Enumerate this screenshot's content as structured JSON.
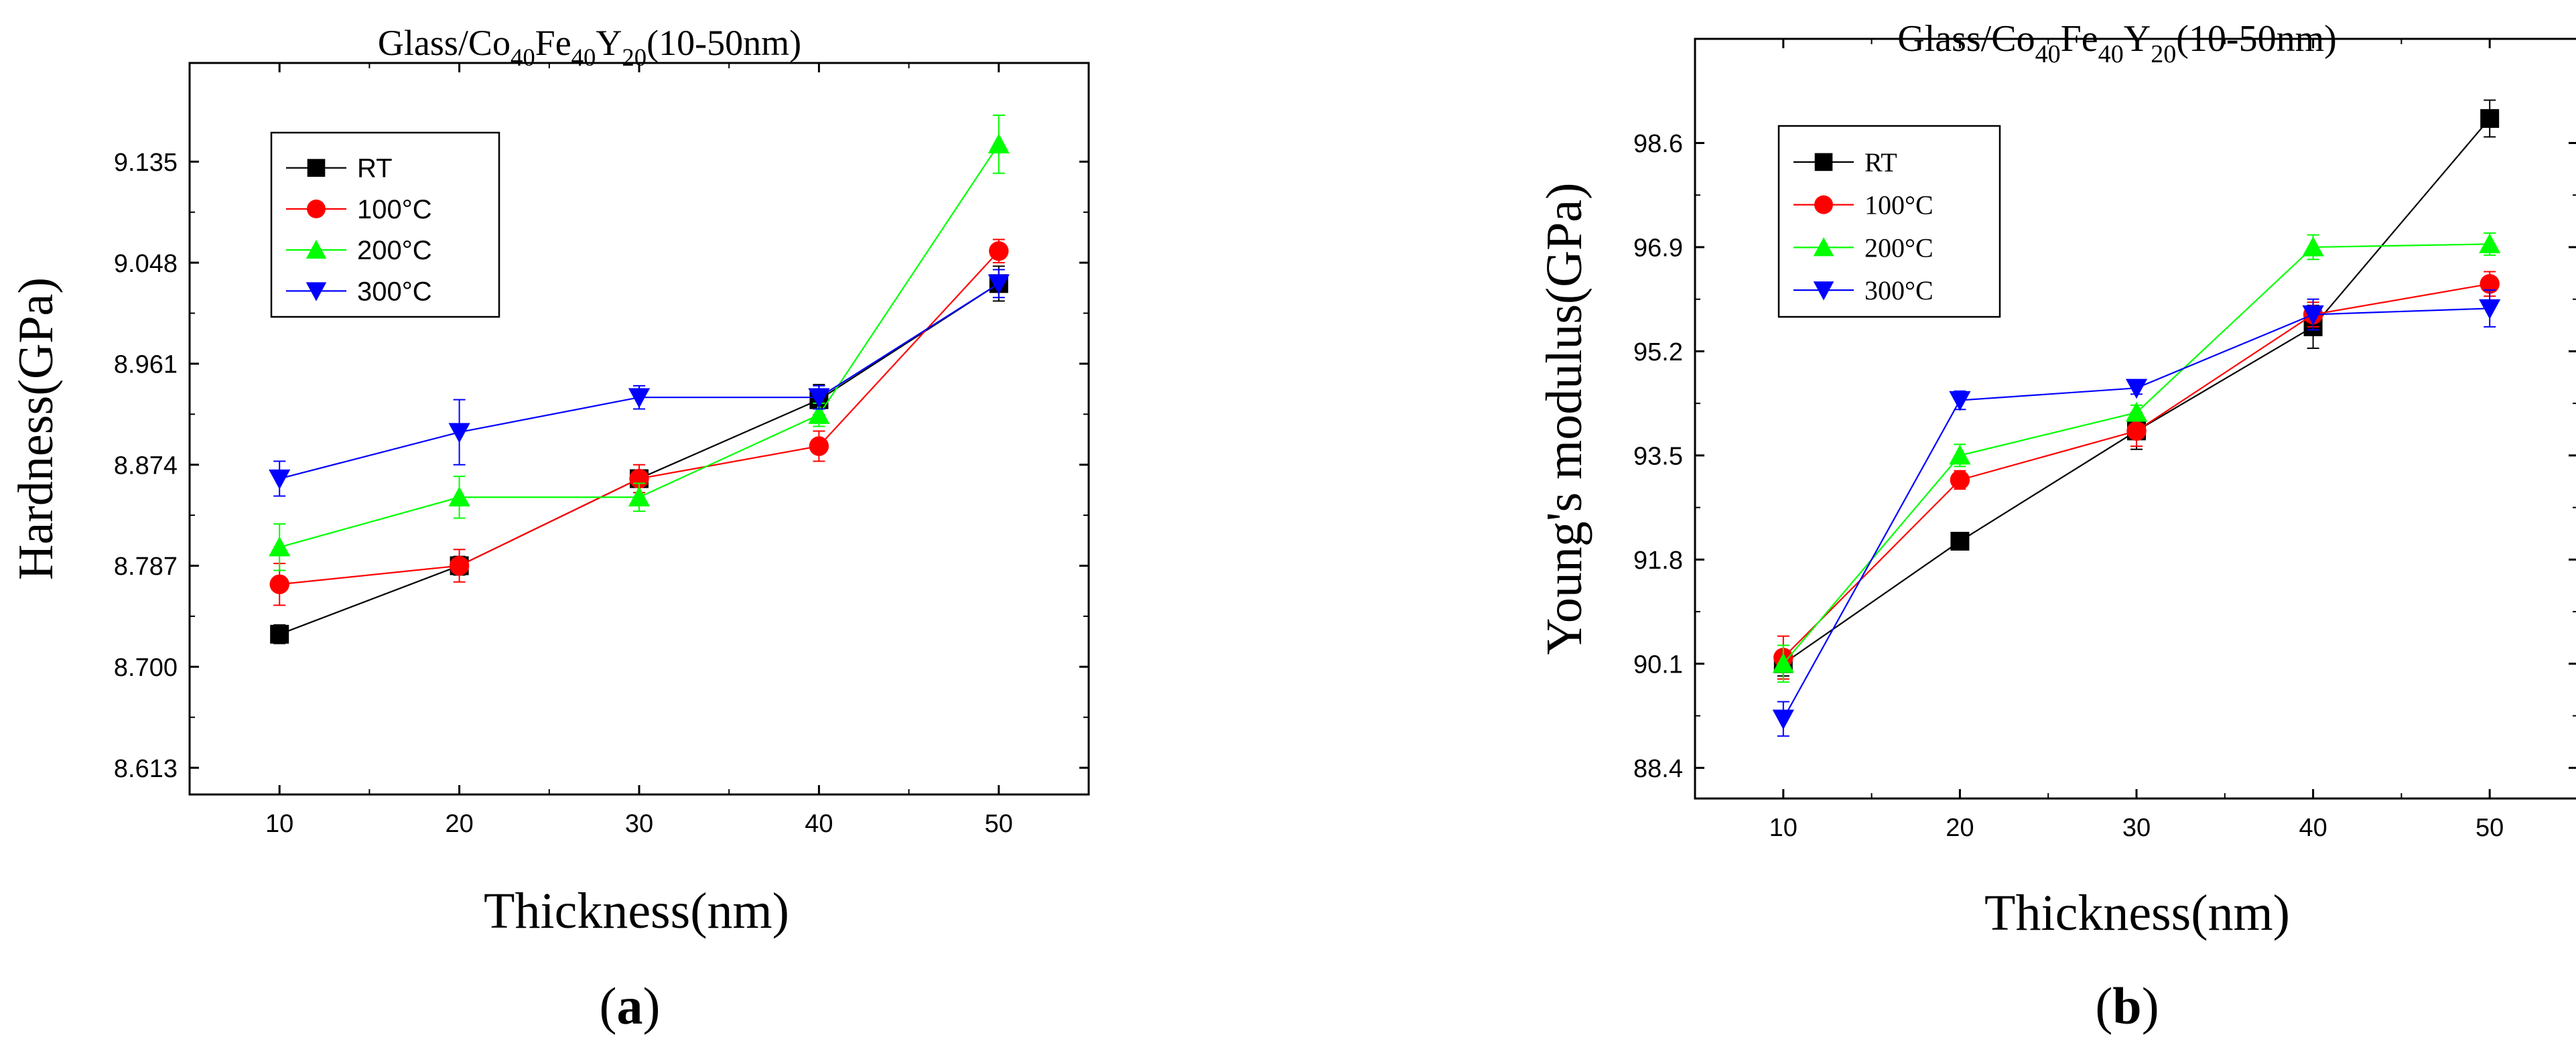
{
  "chart_data": [
    {
      "type": "line",
      "panel_label": "a",
      "title": {
        "base": "Glass/Co",
        "s1": "40",
        "mid": "Fe",
        "s2": "40",
        "mid2": "Y",
        "s3": "20",
        "tail": "(10-50nm)"
      },
      "xlabel": "Thickness(nm)",
      "ylabel": "Hardness(GPa)",
      "x": [
        10,
        20,
        30,
        40,
        50
      ],
      "xticks": [
        "10",
        "20",
        "30",
        "40",
        "50"
      ],
      "yticks": [
        "8.613",
        "8.700",
        "8.787",
        "8.874",
        "8.961",
        "9.048",
        "9.135"
      ],
      "xlim": [
        5,
        55
      ],
      "ylim": [
        8.59,
        9.22
      ],
      "legend_position": "top-left",
      "series": [
        {
          "name": "RT",
          "marker": "square",
          "color": "#000000",
          "values": [
            8.728,
            8.787,
            8.862,
            8.93,
            9.03
          ],
          "errors": [
            0.008,
            0.008,
            0.006,
            0.013,
            0.015
          ]
        },
        {
          "name": "100°C",
          "marker": "circle",
          "color": "#ff0000",
          "values": [
            8.771,
            8.787,
            8.862,
            8.89,
            9.058
          ],
          "errors": [
            0.018,
            0.014,
            0.012,
            0.013,
            0.01
          ]
        },
        {
          "name": "200°C",
          "marker": "triangle-up",
          "color": "#00ff00",
          "values": [
            8.803,
            8.846,
            8.846,
            8.917,
            9.15
          ],
          "errors": [
            0.02,
            0.018,
            0.012,
            0.01,
            0.025
          ]
        },
        {
          "name": "300°C",
          "marker": "triangle-down",
          "color": "#0000ff",
          "values": [
            8.862,
            8.902,
            8.932,
            8.932,
            9.03
          ],
          "errors": [
            0.015,
            0.028,
            0.01,
            0.01,
            0.012
          ]
        }
      ]
    },
    {
      "type": "line",
      "panel_label": "b",
      "title": {
        "base": "Glass/Co",
        "s1": "40",
        "mid": "Fe",
        "s2": "40",
        "mid2": "Y",
        "s3": "20",
        "tail": "(10-50nm)"
      },
      "xlabel": "Thickness(nm)",
      "ylabel": "Young's modulus(GPa)",
      "x": [
        10,
        20,
        30,
        40,
        50
      ],
      "xticks": [
        "10",
        "20",
        "30",
        "40",
        "50"
      ],
      "yticks": [
        "88.4",
        "90.1",
        "91.8",
        "93.5",
        "95.2",
        "96.9",
        "98.6"
      ],
      "xlim": [
        5,
        55
      ],
      "ylim": [
        87.9,
        100.3
      ],
      "legend_position": "top-left",
      "series": [
        {
          "name": "RT",
          "marker": "square",
          "color": "#000000",
          "values": [
            90.1,
            92.1,
            93.9,
            95.6,
            99.0
          ],
          "errors": [
            0.2,
            0.12,
            0.3,
            0.35,
            0.3
          ]
        },
        {
          "name": "100°C",
          "marker": "circle",
          "color": "#ff0000",
          "values": [
            90.2,
            93.1,
            93.9,
            95.8,
            96.3
          ],
          "errors": [
            0.35,
            0.15,
            0.25,
            0.2,
            0.2
          ]
        },
        {
          "name": "200°C",
          "marker": "triangle-up",
          "color": "#00ff00",
          "values": [
            90.1,
            93.5,
            94.2,
            96.9,
            96.95
          ],
          "errors": [
            0.3,
            0.18,
            0.12,
            0.2,
            0.18
          ]
        },
        {
          "name": "300°C",
          "marker": "triangle-down",
          "color": "#0000ff",
          "values": [
            89.2,
            94.4,
            94.6,
            95.8,
            95.9
          ],
          "errors": [
            0.28,
            0.15,
            0.1,
            0.25,
            0.3
          ]
        }
      ]
    }
  ]
}
